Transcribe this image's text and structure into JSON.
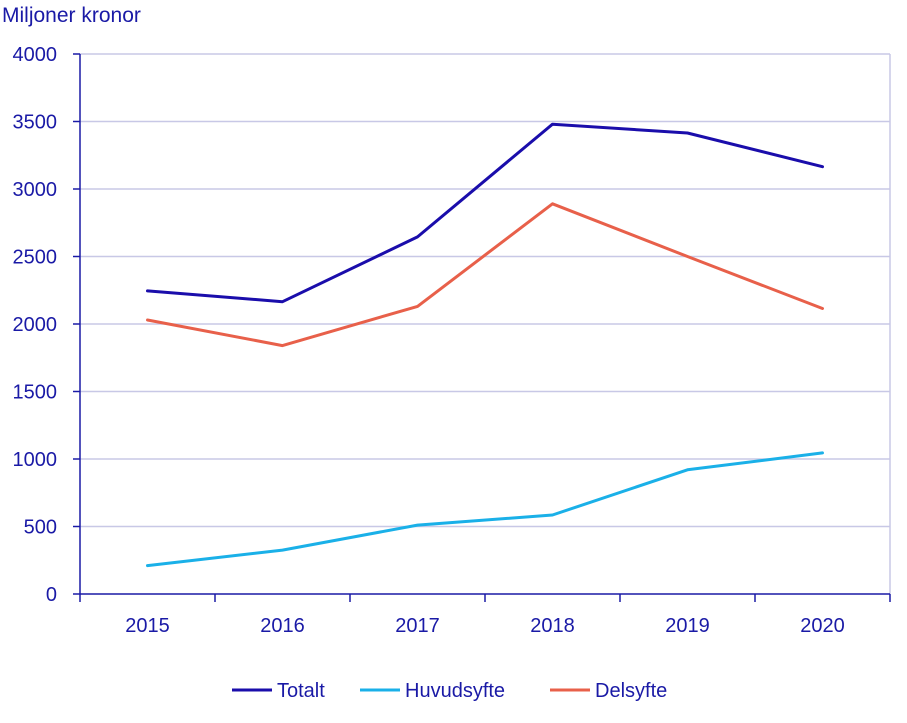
{
  "chart_data": {
    "type": "line",
    "ylabel": "Miljoner kronor",
    "xlabel": "",
    "categories": [
      "2015",
      "2016",
      "2017",
      "2018",
      "2019",
      "2020"
    ],
    "ylim": [
      0,
      4000
    ],
    "yticks": [
      0,
      500,
      1000,
      1500,
      2000,
      2500,
      3000,
      3500,
      4000
    ],
    "grid": true,
    "legend_position": "bottom",
    "series": [
      {
        "name": "Totalt",
        "color": "#1a0dab",
        "values": [
          2245,
          2165,
          2645,
          3480,
          3415,
          3165
        ]
      },
      {
        "name": "Huvudsyfte",
        "color": "#1ab0e8",
        "values": [
          210,
          325,
          510,
          585,
          920,
          1045
        ]
      },
      {
        "name": "Delsyfte",
        "color": "#e8604a",
        "values": [
          2030,
          1840,
          2130,
          2890,
          2500,
          2115
        ]
      }
    ]
  },
  "colors": {
    "axis_text": "#1a1aa6",
    "grid": "#c8c8e6",
    "axis": "#1a1aa6"
  }
}
